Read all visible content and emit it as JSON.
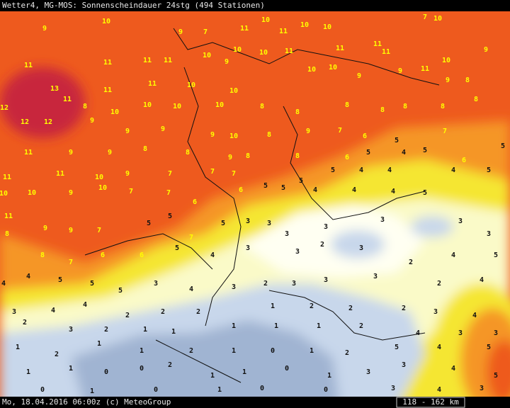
{
  "header": {
    "title": "Wetter4, MG-MOS: Sonnenscheindauer 24stg (494 Stationen)"
  },
  "footer": {
    "text": "Mo, 18.04.2016 06:00z (c) MeteoGroup",
    "scale": "118 - 162 km"
  },
  "stations": [
    10,
    9,
    9,
    7,
    11,
    10,
    11,
    10,
    10,
    7,
    10,
    9,
    11,
    11,
    11,
    11,
    10,
    9,
    10,
    10,
    11,
    11,
    11,
    11,
    10,
    13,
    11,
    11,
    10,
    10,
    10,
    10,
    9,
    9,
    11,
    9,
    8,
    12,
    11,
    8,
    10,
    10,
    10,
    10,
    8,
    8,
    8,
    8,
    8,
    8,
    8,
    12,
    12,
    9,
    9,
    9,
    9,
    10,
    8,
    9,
    7,
    6,
    5,
    7,
    11,
    9,
    9,
    8,
    8,
    9,
    8,
    8,
    6,
    5,
    4,
    5,
    6,
    5,
    11,
    11,
    10,
    9,
    7,
    7,
    7,
    5,
    5,
    5,
    4,
    4,
    4,
    5,
    10,
    10,
    9,
    10,
    7,
    7,
    6,
    6,
    5,
    4,
    4,
    4,
    5,
    11,
    9,
    9,
    7,
    5,
    5,
    7,
    5,
    3,
    3,
    3,
    3,
    3,
    3,
    3,
    8,
    8,
    7,
    6,
    6,
    5,
    4,
    3,
    3,
    2,
    3,
    2,
    4,
    5,
    4,
    4,
    5,
    5,
    5,
    3,
    4,
    3,
    2,
    3,
    3,
    3,
    2,
    4,
    3,
    4,
    4,
    2,
    2,
    2,
    1,
    2,
    2,
    2,
    3,
    4,
    2,
    3,
    2,
    1,
    1,
    1,
    1,
    1,
    2,
    4,
    3,
    3,
    1,
    2,
    1,
    1,
    2,
    1,
    0,
    1,
    2,
    5,
    4,
    5,
    1,
    1,
    0,
    0,
    2,
    1,
    1,
    0,
    1,
    3,
    3,
    4,
    5,
    0,
    1,
    0,
    1,
    0,
    0,
    3,
    4,
    3
  ]
}
